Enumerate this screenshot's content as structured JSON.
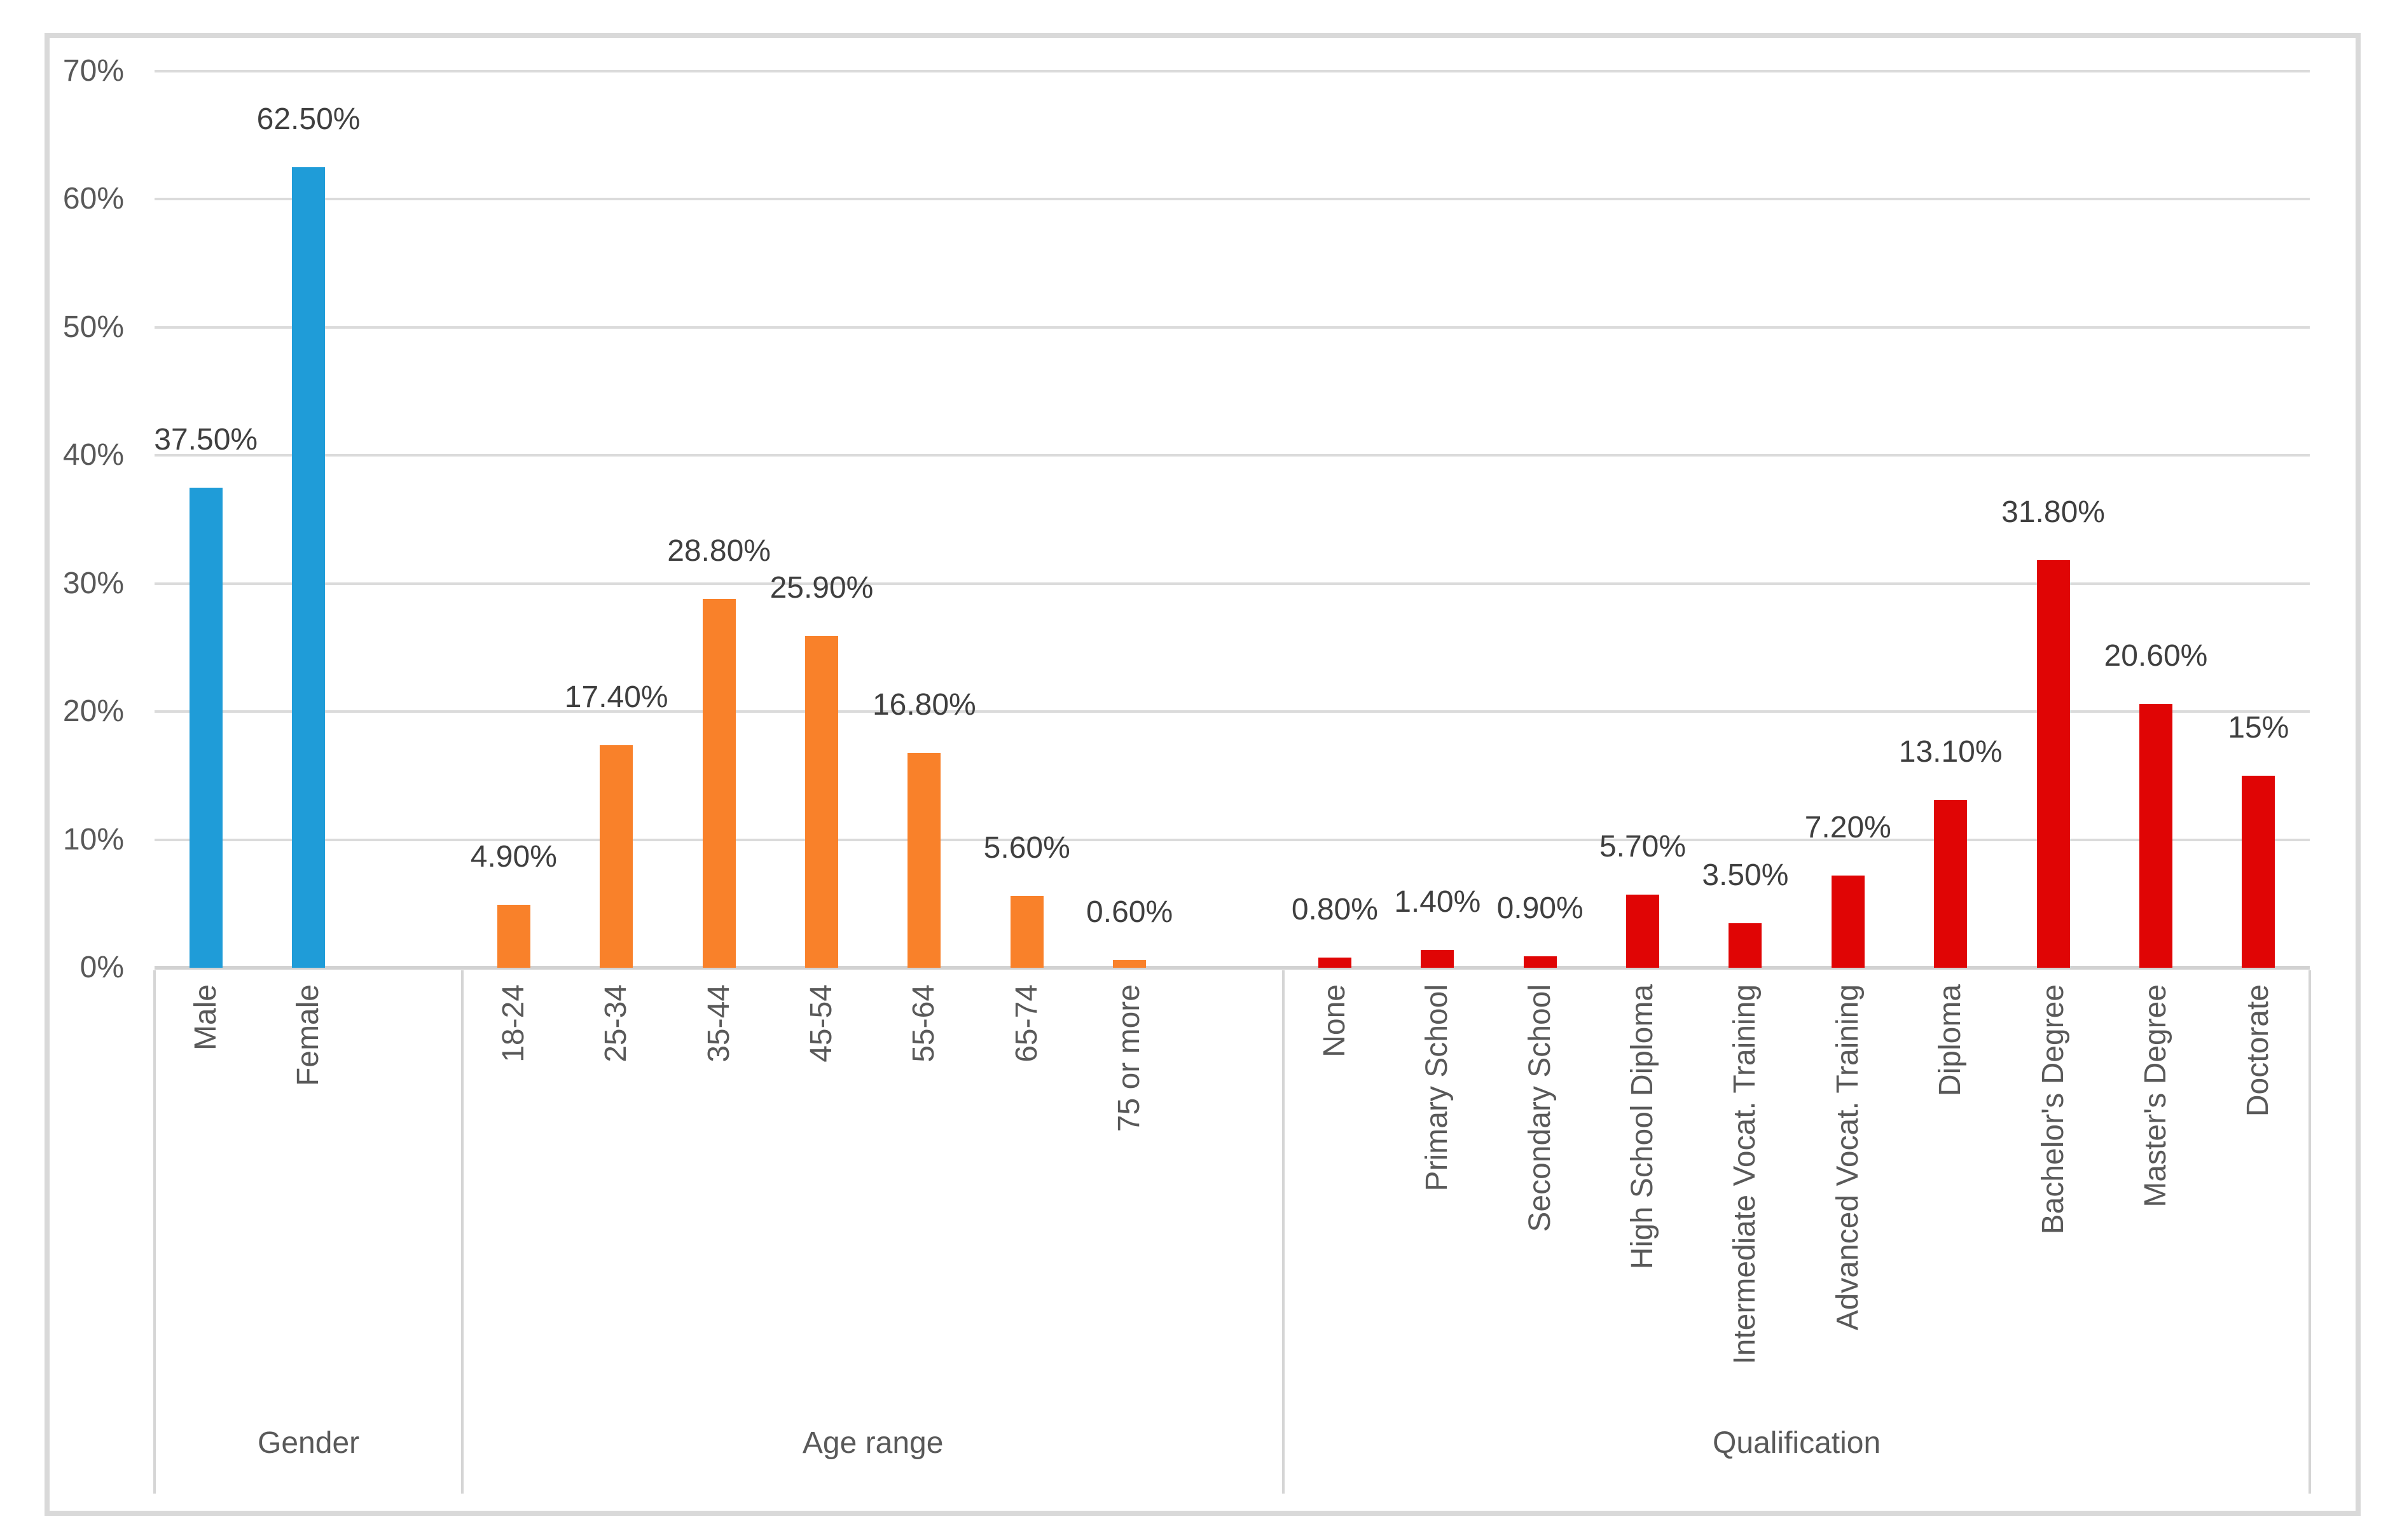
{
  "chart_data": {
    "type": "bar",
    "title": "",
    "xlabel": "",
    "ylabel": "",
    "ylim": [
      0,
      70
    ],
    "grid": true,
    "legend_position": "none",
    "ytick_values": [
      0,
      10,
      20,
      30,
      40,
      50,
      60,
      70
    ],
    "ytick_labels": [
      "0%",
      "10%",
      "20%",
      "30%",
      "40%",
      "50%",
      "60%",
      "70%"
    ],
    "groups": [
      {
        "name": "Gender",
        "bar_color": "#1F9CD8",
        "items": [
          {
            "label": "Male",
            "value": 37.5,
            "display": "37.50%"
          },
          {
            "label": "Female",
            "value": 62.5,
            "display": "62.50%"
          }
        ]
      },
      {
        "name": "Age range",
        "bar_color": "#F9812A",
        "items": [
          {
            "label": "18-24",
            "value": 4.9,
            "display": "4.90%"
          },
          {
            "label": "25-34",
            "value": 17.4,
            "display": "17.40%"
          },
          {
            "label": "35-44",
            "value": 28.8,
            "display": "28.80%"
          },
          {
            "label": "45-54",
            "value": 25.9,
            "display": "25.90%"
          },
          {
            "label": "55-64",
            "value": 16.8,
            "display": "16.80%"
          },
          {
            "label": "65-74",
            "value": 5.6,
            "display": "5.60%"
          },
          {
            "label": "75 or more",
            "value": 0.6,
            "display": "0.60%"
          }
        ]
      },
      {
        "name": "Qualification",
        "bar_color": "#E00505",
        "items": [
          {
            "label": "None",
            "value": 0.8,
            "display": "0.80%"
          },
          {
            "label": "Primary School",
            "value": 1.4,
            "display": "1.40%"
          },
          {
            "label": "Secondary School",
            "value": 0.9,
            "display": "0.90%"
          },
          {
            "label": "High School Diploma",
            "value": 5.7,
            "display": "5.70%"
          },
          {
            "label": "Intermediate Vocat. Training",
            "value": 3.5,
            "display": "3.50%"
          },
          {
            "label": "Advanced Vocat. Training",
            "value": 7.2,
            "display": "7.20%"
          },
          {
            "label": "Diploma",
            "value": 13.1,
            "display": "13.10%"
          },
          {
            "label": "Bachelor's Degree",
            "value": 31.8,
            "display": "31.80%"
          },
          {
            "label": "Master's Degree",
            "value": 20.6,
            "display": "20.60%"
          },
          {
            "label": "Doctorate",
            "value": 15,
            "display": "15%"
          }
        ]
      }
    ]
  },
  "colors": {
    "background": "#FFFFFF",
    "frame_border": "#D9D9D9",
    "gridline": "#DBDBDB",
    "axis_line": "#D2D2D2",
    "divider": "#D5D5D5",
    "axis_text": "#595959",
    "data_label_text": "#3F3F3F"
  }
}
